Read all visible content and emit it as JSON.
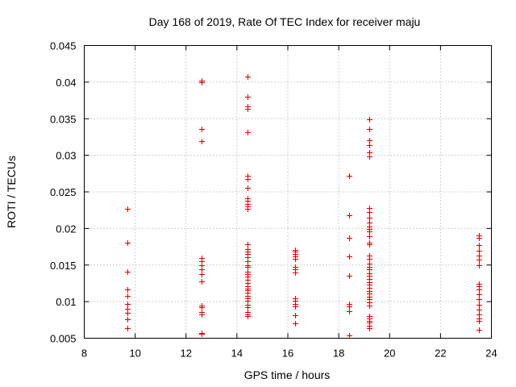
{
  "chart_data": {
    "type": "scatter",
    "title": "Day 168 of 2019, Rate Of TEC Index for receiver maju",
    "xlabel": "GPS time / hours",
    "ylabel": "ROTI / TECUs",
    "xlim": [
      8,
      24
    ],
    "ylim": [
      0.005,
      0.045
    ],
    "xticks": [
      8,
      10,
      12,
      14,
      16,
      18,
      20,
      22,
      24
    ],
    "xtick_labels": [
      "8",
      "10",
      "12",
      "14",
      "16",
      "18",
      "20",
      "22",
      "24"
    ],
    "yticks": [
      0.005,
      0.01,
      0.015,
      0.02,
      0.025,
      0.03,
      0.035,
      0.04,
      0.045
    ],
    "ytick_labels": [
      "0.005",
      "0.01",
      "0.015",
      "0.02",
      "0.025",
      "0.03",
      "0.035",
      "0.04",
      "0.045"
    ],
    "grid": true,
    "marker": "+",
    "color": "#dd0000",
    "series": [
      {
        "name": "ROTI",
        "points": [
          [
            9.7,
            0.0227
          ],
          [
            9.7,
            0.0181
          ],
          [
            9.7,
            0.0141
          ],
          [
            9.7,
            0.0117
          ],
          [
            9.7,
            0.0108
          ],
          [
            9.7,
            0.0097
          ],
          [
            9.7,
            0.009
          ],
          [
            9.7,
            0.0085
          ],
          [
            9.7,
            0.0076
          ],
          [
            9.7,
            0.0064
          ],
          [
            12.6,
            0.0402
          ],
          [
            12.6,
            0.04
          ],
          [
            12.6,
            0.0336
          ],
          [
            12.6,
            0.0319
          ],
          [
            12.6,
            0.016
          ],
          [
            12.6,
            0.0155
          ],
          [
            12.6,
            0.015
          ],
          [
            12.6,
            0.0144
          ],
          [
            12.6,
            0.0138
          ],
          [
            12.6,
            0.0128
          ],
          [
            12.6,
            0.0095
          ],
          [
            12.6,
            0.0092
          ],
          [
            12.6,
            0.0086
          ],
          [
            12.6,
            0.0082
          ],
          [
            12.6,
            0.0057
          ],
          [
            12.6,
            0.0056
          ],
          [
            14.4,
            0.0408
          ],
          [
            14.4,
            0.038
          ],
          [
            14.4,
            0.0367
          ],
          [
            14.4,
            0.0364
          ],
          [
            14.4,
            0.0332
          ],
          [
            14.4,
            0.0272
          ],
          [
            14.4,
            0.0268
          ],
          [
            14.4,
            0.0255
          ],
          [
            14.4,
            0.0241
          ],
          [
            14.4,
            0.0238
          ],
          [
            14.4,
            0.0233
          ],
          [
            14.4,
            0.023
          ],
          [
            14.4,
            0.0227
          ],
          [
            14.4,
            0.0178
          ],
          [
            14.4,
            0.0172
          ],
          [
            14.4,
            0.0168
          ],
          [
            14.4,
            0.0165
          ],
          [
            14.4,
            0.0161
          ],
          [
            14.4,
            0.0155
          ],
          [
            14.4,
            0.015
          ],
          [
            14.4,
            0.0147
          ],
          [
            14.4,
            0.0141
          ],
          [
            14.4,
            0.0138
          ],
          [
            14.4,
            0.0134
          ],
          [
            14.4,
            0.013
          ],
          [
            14.4,
            0.0125
          ],
          [
            14.4,
            0.0121
          ],
          [
            14.4,
            0.0118
          ],
          [
            14.4,
            0.0116
          ],
          [
            14.4,
            0.0112
          ],
          [
            14.4,
            0.0108
          ],
          [
            14.4,
            0.0105
          ],
          [
            14.4,
            0.0101
          ],
          [
            14.4,
            0.0096
          ],
          [
            14.4,
            0.0092
          ],
          [
            14.4,
            0.0086
          ],
          [
            14.4,
            0.0083
          ],
          [
            14.4,
            0.008
          ],
          [
            16.3,
            0.0171
          ],
          [
            16.3,
            0.0168
          ],
          [
            16.3,
            0.0165
          ],
          [
            16.3,
            0.0162
          ],
          [
            16.3,
            0.0158
          ],
          [
            16.3,
            0.0148
          ],
          [
            16.3,
            0.0144
          ],
          [
            16.3,
            0.014
          ],
          [
            16.3,
            0.0104
          ],
          [
            16.3,
            0.0101
          ],
          [
            16.3,
            0.0097
          ],
          [
            16.3,
            0.0093
          ],
          [
            16.3,
            0.0081
          ],
          [
            16.3,
            0.007
          ],
          [
            18.4,
            0.0272
          ],
          [
            18.4,
            0.0218
          ],
          [
            18.4,
            0.0187
          ],
          [
            18.4,
            0.0162
          ],
          [
            18.4,
            0.0135
          ],
          [
            18.4,
            0.0097
          ],
          [
            18.4,
            0.0093
          ],
          [
            18.4,
            0.0087
          ],
          [
            18.4,
            0.0054
          ],
          [
            19.2,
            0.0349
          ],
          [
            19.2,
            0.0336
          ],
          [
            19.2,
            0.032
          ],
          [
            19.2,
            0.0314
          ],
          [
            19.2,
            0.0304
          ],
          [
            19.2,
            0.0298
          ],
          [
            19.2,
            0.0228
          ],
          [
            19.2,
            0.0222
          ],
          [
            19.2,
            0.0215
          ],
          [
            19.2,
            0.0208
          ],
          [
            19.2,
            0.0203
          ],
          [
            19.2,
            0.0199
          ],
          [
            19.2,
            0.0196
          ],
          [
            19.2,
            0.0189
          ],
          [
            19.2,
            0.0181
          ],
          [
            19.2,
            0.0178
          ],
          [
            19.2,
            0.0163
          ],
          [
            19.2,
            0.0158
          ],
          [
            19.2,
            0.0152
          ],
          [
            19.2,
            0.0148
          ],
          [
            19.2,
            0.0144
          ],
          [
            19.2,
            0.0139
          ],
          [
            19.2,
            0.0135
          ],
          [
            19.2,
            0.0131
          ],
          [
            19.2,
            0.0127
          ],
          [
            19.2,
            0.0123
          ],
          [
            19.2,
            0.0119
          ],
          [
            19.2,
            0.0115
          ],
          [
            19.2,
            0.0111
          ],
          [
            19.2,
            0.0107
          ],
          [
            19.2,
            0.0103
          ],
          [
            19.2,
            0.0099
          ],
          [
            19.2,
            0.0095
          ],
          [
            19.2,
            0.008
          ],
          [
            19.2,
            0.0077
          ],
          [
            19.2,
            0.0074
          ],
          [
            19.2,
            0.0071
          ],
          [
            19.2,
            0.0067
          ],
          [
            19.2,
            0.0064
          ],
          [
            23.5,
            0.0191
          ],
          [
            23.5,
            0.0187
          ],
          [
            23.5,
            0.0177
          ],
          [
            23.5,
            0.017
          ],
          [
            23.5,
            0.0163
          ],
          [
            23.5,
            0.0157
          ],
          [
            23.5,
            0.015
          ],
          [
            23.5,
            0.0124
          ],
          [
            23.5,
            0.0121
          ],
          [
            23.5,
            0.0117
          ],
          [
            23.5,
            0.011
          ],
          [
            23.5,
            0.0103
          ],
          [
            23.5,
            0.0096
          ],
          [
            23.5,
            0.0089
          ],
          [
            23.5,
            0.0083
          ],
          [
            23.5,
            0.0077
          ],
          [
            23.5,
            0.0074
          ],
          [
            23.5,
            0.0062
          ]
        ]
      }
    ]
  }
}
